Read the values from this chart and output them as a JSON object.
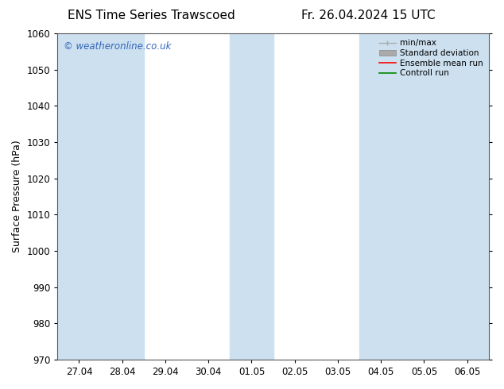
{
  "title_left": "ENS Time Series Trawscoed",
  "title_right": "Fr. 26.04.2024 15 UTC",
  "ylabel": "Surface Pressure (hPa)",
  "ylim": [
    970,
    1060
  ],
  "yticks": [
    970,
    980,
    990,
    1000,
    1010,
    1020,
    1030,
    1040,
    1050,
    1060
  ],
  "xtick_labels": [
    "27.04",
    "28.04",
    "29.04",
    "30.04",
    "01.05",
    "02.05",
    "03.05",
    "04.05",
    "05.05",
    "06.05"
  ],
  "watermark": "© weatheronline.co.uk",
  "watermark_color": "#3366bb",
  "bg_color": "#ffffff",
  "plot_bg_color": "#ffffff",
  "shaded_band_color": "#cce0f0",
  "shaded_columns": [
    0,
    1,
    4,
    7,
    8,
    9
  ],
  "legend_items": [
    {
      "label": "min/max",
      "color": "#aaaaaa",
      "lw": 1.0,
      "style": "minmax"
    },
    {
      "label": "Standard deviation",
      "color": "#aaaaaa",
      "lw": 5,
      "style": "band"
    },
    {
      "label": "Ensemble mean run",
      "color": "#ff0000",
      "lw": 1.2,
      "style": "line"
    },
    {
      "label": "Controll run",
      "color": "#008800",
      "lw": 1.2,
      "style": "line"
    }
  ],
  "title_fontsize": 11,
  "tick_fontsize": 8.5,
  "ylabel_fontsize": 9
}
